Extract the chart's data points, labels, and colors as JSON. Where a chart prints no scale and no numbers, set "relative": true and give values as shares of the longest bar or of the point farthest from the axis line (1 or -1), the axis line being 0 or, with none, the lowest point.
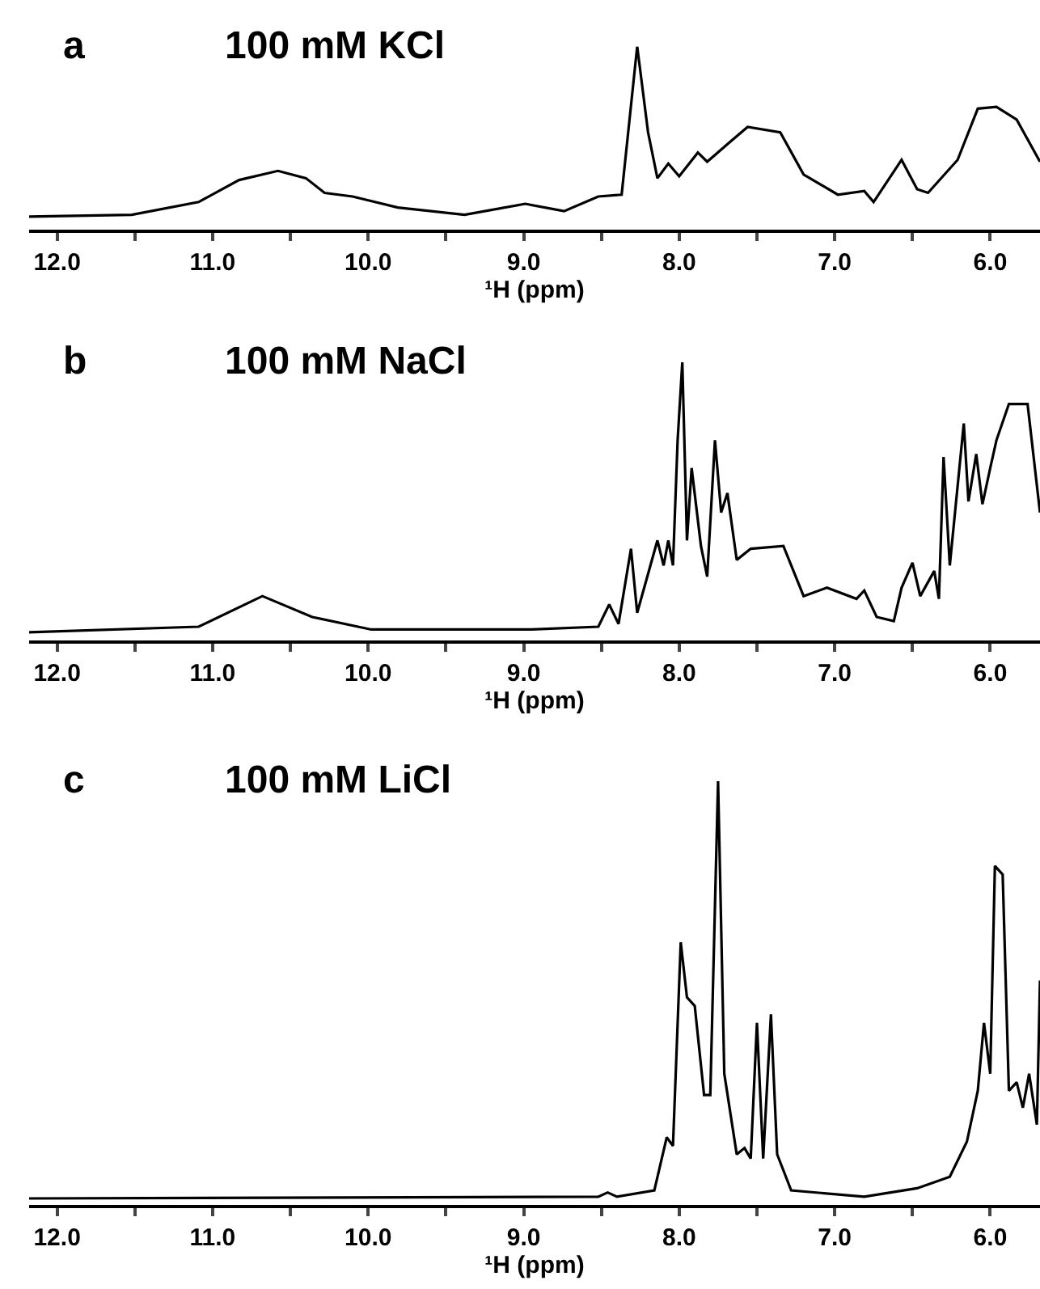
{
  "chart_data": [
    {
      "type": "line",
      "title": "100 mM KCl",
      "annotations": [
        "a"
      ],
      "xlabel": "¹H (ppm)",
      "relative": true,
      "tick_labels": "x",
      "xlim": [
        12.18,
        5.68
      ],
      "xticks": [
        {
          "value": 12.0,
          "label": "12.0"
        },
        {
          "value": 11.5,
          "label": null
        },
        {
          "value": 11.0,
          "label": "11.0"
        },
        {
          "value": 10.5,
          "label": null
        },
        {
          "value": 10.0,
          "label": "10.0"
        },
        {
          "value": 9.5,
          "label": null
        },
        {
          "value": 9.0,
          "label": "9.0"
        },
        {
          "value": 8.5,
          "label": null
        },
        {
          "value": 8.0,
          "label": "8.0"
        },
        {
          "value": 7.5,
          "label": null
        },
        {
          "value": 7.0,
          "label": "7.0"
        },
        {
          "value": 6.5,
          "label": null
        },
        {
          "value": 6.0,
          "label": "6.0"
        }
      ],
      "x": [
        12.18,
        11.52,
        11.09,
        10.83,
        10.58,
        10.4,
        10.28,
        10.1,
        9.81,
        9.38,
        8.99,
        8.74,
        8.52,
        8.37,
        8.27,
        8.2,
        8.14,
        8.07,
        8.0,
        7.88,
        7.82,
        7.67,
        7.56,
        7.35,
        7.2,
        6.98,
        6.81,
        6.75,
        6.57,
        6.47,
        6.4,
        6.21,
        6.08,
        5.96,
        5.83,
        5.68
      ],
      "series": [
        {
          "color": "#000000",
          "values": [
            0.07,
            0.08,
            0.15,
            0.27,
            0.32,
            0.28,
            0.2,
            0.18,
            0.12,
            0.08,
            0.14,
            0.1,
            0.18,
            0.19,
            1.0,
            0.53,
            0.28,
            0.36,
            0.29,
            0.42,
            0.37,
            0.48,
            0.56,
            0.53,
            0.3,
            0.19,
            0.21,
            0.15,
            0.38,
            0.22,
            0.2,
            0.38,
            0.66,
            0.67,
            0.6,
            0.37
          ]
        }
      ]
    },
    {
      "type": "line",
      "title": "100 mM NaCl",
      "annotations": [
        "b"
      ],
      "xlabel": "¹H (ppm)",
      "relative": true,
      "tick_labels": "x",
      "xlim": [
        12.18,
        5.68
      ],
      "xticks": [
        {
          "value": 12.0,
          "label": "12.0"
        },
        {
          "value": 11.5,
          "label": null
        },
        {
          "value": 11.0,
          "label": "11.0"
        },
        {
          "value": 10.5,
          "label": null
        },
        {
          "value": 10.0,
          "label": "10.0"
        },
        {
          "value": 9.5,
          "label": null
        },
        {
          "value": 9.0,
          "label": "9.0"
        },
        {
          "value": 8.5,
          "label": null
        },
        {
          "value": 8.0,
          "label": "8.0"
        },
        {
          "value": 7.5,
          "label": null
        },
        {
          "value": 7.0,
          "label": "7.0"
        },
        {
          "value": 6.5,
          "label": null
        },
        {
          "value": 6.0,
          "label": "6.0"
        }
      ],
      "x": [
        12.18,
        11.09,
        10.68,
        10.36,
        9.98,
        8.95,
        8.52,
        8.45,
        8.39,
        8.31,
        8.27,
        8.14,
        8.1,
        8.07,
        8.04,
        8.01,
        7.98,
        7.95,
        7.92,
        7.86,
        7.82,
        7.77,
        7.73,
        7.69,
        7.63,
        7.54,
        7.33,
        7.2,
        7.05,
        6.86,
        6.81,
        6.73,
        6.62,
        6.57,
        6.5,
        6.45,
        6.36,
        6.33,
        6.3,
        6.26,
        6.17,
        6.14,
        6.09,
        6.05,
        6.0,
        5.96,
        5.88,
        5.76,
        5.68
      ],
      "series": [
        {
          "color": "#000000",
          "values": [
            0.03,
            0.05,
            0.16,
            0.085,
            0.04,
            0.04,
            0.05,
            0.13,
            0.06,
            0.33,
            0.1,
            0.36,
            0.27,
            0.36,
            0.27,
            0.72,
            1.0,
            0.36,
            0.62,
            0.34,
            0.23,
            0.72,
            0.46,
            0.53,
            0.29,
            0.33,
            0.34,
            0.16,
            0.19,
            0.15,
            0.18,
            0.085,
            0.07,
            0.19,
            0.28,
            0.16,
            0.25,
            0.15,
            0.66,
            0.27,
            0.78,
            0.5,
            0.67,
            0.49,
            0.62,
            0.72,
            0.85,
            0.85,
            0.46
          ]
        }
      ]
    },
    {
      "type": "line",
      "title": "100 mM LiCl",
      "annotations": [
        "c"
      ],
      "xlabel": "¹H (ppm)",
      "relative": true,
      "tick_labels": "x",
      "xlim": [
        12.18,
        5.68
      ],
      "xticks": [
        {
          "value": 12.0,
          "label": "12.0"
        },
        {
          "value": 11.5,
          "label": null
        },
        {
          "value": 11.0,
          "label": "11.0"
        },
        {
          "value": 10.5,
          "label": null
        },
        {
          "value": 10.0,
          "label": "10.0"
        },
        {
          "value": 9.5,
          "label": null
        },
        {
          "value": 9.0,
          "label": "9.0"
        },
        {
          "value": 8.5,
          "label": null
        },
        {
          "value": 8.0,
          "label": "8.0"
        },
        {
          "value": 7.5,
          "label": null
        },
        {
          "value": 7.0,
          "label": "7.0"
        },
        {
          "value": 6.5,
          "label": null
        },
        {
          "value": 6.0,
          "label": "6.0"
        }
      ],
      "x": [
        12.18,
        8.52,
        8.46,
        8.4,
        8.16,
        8.08,
        8.04,
        7.99,
        7.95,
        7.9,
        7.84,
        7.8,
        7.75,
        7.71,
        7.63,
        7.58,
        7.54,
        7.5,
        7.46,
        7.41,
        7.37,
        7.28,
        6.81,
        6.47,
        6.26,
        6.15,
        6.08,
        6.04,
        6.0,
        5.97,
        5.92,
        5.88,
        5.83,
        5.79,
        5.75,
        5.7,
        5.68
      ],
      "series": [
        {
          "color": "#000000",
          "values": [
            0.016,
            0.02,
            0.03,
            0.02,
            0.035,
            0.16,
            0.14,
            0.62,
            0.49,
            0.47,
            0.26,
            0.26,
            1.0,
            0.31,
            0.12,
            0.135,
            0.11,
            0.43,
            0.11,
            0.45,
            0.12,
            0.035,
            0.02,
            0.04,
            0.067,
            0.15,
            0.27,
            0.43,
            0.31,
            0.8,
            0.78,
            0.27,
            0.29,
            0.23,
            0.31,
            0.19,
            0.53
          ]
        }
      ]
    }
  ]
}
